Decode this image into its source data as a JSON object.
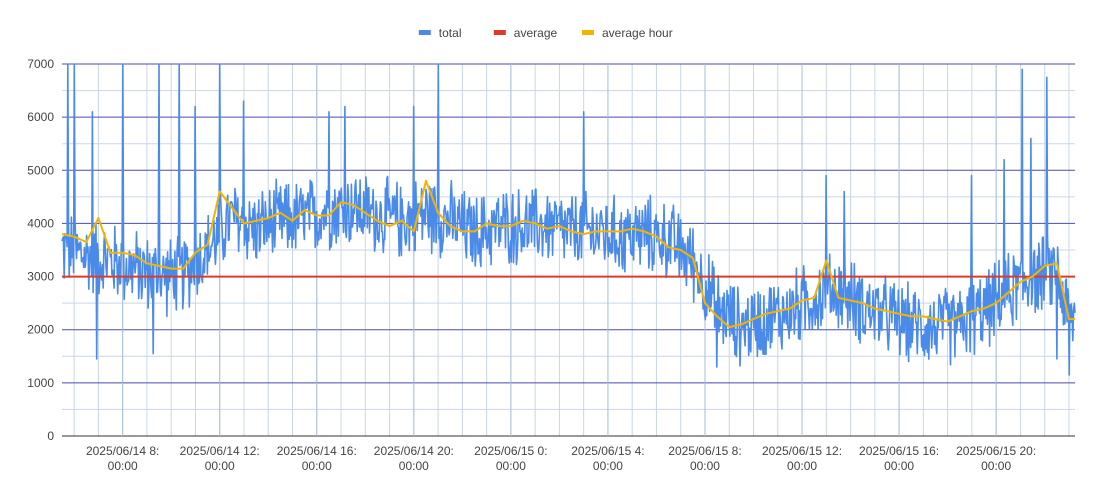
{
  "chart_data": {
    "type": "line",
    "title": "",
    "xlabel": "",
    "ylabel": "",
    "ylim": [
      0,
      7000
    ],
    "y_ticks": [
      0,
      1000,
      2000,
      3000,
      4000,
      5000,
      6000,
      7000
    ],
    "x_range": [
      "2025/06/14 05:30",
      "2025/06/15 23:15"
    ],
    "x_tick_labels": [
      {
        "at": "2025/06/14 08:00",
        "line1": "2025/06/14 8:",
        "line2": "00:00"
      },
      {
        "at": "2025/06/14 12:00",
        "line1": "2025/06/14 12:",
        "line2": "00:00"
      },
      {
        "at": "2025/06/14 16:00",
        "line1": "2025/06/14 16:",
        "line2": "00:00"
      },
      {
        "at": "2025/06/14 20:00",
        "line1": "2025/06/14 20:",
        "line2": "00:00"
      },
      {
        "at": "2025/06/15 00:00",
        "line1": "2025/06/15 0:",
        "line2": "00:00"
      },
      {
        "at": "2025/06/15 04:00",
        "line1": "2025/06/15 4:",
        "line2": "00:00"
      },
      {
        "at": "2025/06/15 08:00",
        "line1": "2025/06/15 8:",
        "line2": "00:00"
      },
      {
        "at": "2025/06/15 12:00",
        "line1": "2025/06/15 12:",
        "line2": "00:00"
      },
      {
        "at": "2025/06/15 16:00",
        "line1": "2025/06/15 16:",
        "line2": "00:00"
      },
      {
        "at": "2025/06/15 20:00",
        "line1": "2025/06/15 20:",
        "line2": "00:00"
      }
    ],
    "grid": true,
    "legend": {
      "position": "top-center"
    },
    "series": [
      {
        "name": "total",
        "color": "#4a8bea",
        "x": [
          "2025/06/14 05:30",
          "2025/06/14 06:30",
          "2025/06/14 07:30",
          "2025/06/14 08:30",
          "2025/06/14 09:30",
          "2025/06/14 10:30",
          "2025/06/14 11:30",
          "2025/06/14 12:30",
          "2025/06/14 13:30",
          "2025/06/14 14:30",
          "2025/06/14 15:30",
          "2025/06/14 16:30",
          "2025/06/14 17:30",
          "2025/06/14 18:30",
          "2025/06/14 19:30",
          "2025/06/14 20:30",
          "2025/06/14 21:30",
          "2025/06/14 22:30",
          "2025/06/14 23:30",
          "2025/06/15 00:30",
          "2025/06/15 01:30",
          "2025/06/15 02:30",
          "2025/06/15 03:30",
          "2025/06/15 04:30",
          "2025/06/15 05:30",
          "2025/06/15 06:30",
          "2025/06/15 07:30",
          "2025/06/15 08:30",
          "2025/06/15 09:30",
          "2025/06/15 10:30",
          "2025/06/15 11:30",
          "2025/06/15 12:30",
          "2025/06/15 13:30",
          "2025/06/15 14:30",
          "2025/06/15 15:30",
          "2025/06/15 16:30",
          "2025/06/15 17:30",
          "2025/06/15 18:30",
          "2025/06/15 19:30",
          "2025/06/15 20:30",
          "2025/06/15 21:30",
          "2025/06/15 22:30",
          "2025/06/15 23:00"
        ],
        "values": [
          3500,
          3400,
          3300,
          3150,
          3000,
          3050,
          3500,
          4100,
          3900,
          4050,
          4100,
          4250,
          4300,
          4150,
          4050,
          4200,
          4050,
          3800,
          3950,
          3950,
          3950,
          3850,
          3850,
          3750,
          3800,
          3700,
          3300,
          2400,
          2050,
          2200,
          2350,
          2600,
          2750,
          2450,
          2250,
          2100,
          2050,
          2100,
          2350,
          2700,
          3000,
          3100,
          2200
        ],
        "noise_band": 700,
        "spikes": [
          [
            "2025/06/14 05:45",
            7000
          ],
          [
            "2025/06/14 06:00",
            7000
          ],
          [
            "2025/06/14 06:45",
            6100
          ],
          [
            "2025/06/14 06:55",
            1450
          ],
          [
            "2025/06/14 08:00",
            7000
          ],
          [
            "2025/06/14 09:15",
            1550
          ],
          [
            "2025/06/14 09:30",
            7000
          ],
          [
            "2025/06/14 10:20",
            7000
          ],
          [
            "2025/06/14 11:00",
            6200
          ],
          [
            "2025/06/14 12:00",
            7000
          ],
          [
            "2025/06/14 13:00",
            6300
          ],
          [
            "2025/06/14 16:30",
            6100
          ],
          [
            "2025/06/14 17:10",
            6200
          ],
          [
            "2025/06/14 20:00",
            6200
          ],
          [
            "2025/06/14 21:00",
            7000
          ],
          [
            "2025/06/15 03:00",
            6100
          ],
          [
            "2025/06/15 08:30",
            1300
          ],
          [
            "2025/06/15 13:00",
            4900
          ],
          [
            "2025/06/15 13:45",
            4600
          ],
          [
            "2025/06/15 19:00",
            4900
          ],
          [
            "2025/06/15 20:20",
            5200
          ],
          [
            "2025/06/15 21:05",
            6900
          ],
          [
            "2025/06/15 21:25",
            5600
          ],
          [
            "2025/06/15 22:05",
            6750
          ],
          [
            "2025/06/15 22:30",
            1450
          ],
          [
            "2025/06/15 23:00",
            1150
          ]
        ]
      },
      {
        "name": "average",
        "color": "#db3b2b",
        "x": [
          "2025/06/14 05:30",
          "2025/06/15 23:15"
        ],
        "values": [
          3000,
          3000
        ]
      },
      {
        "name": "average hour",
        "color": "#f1b400",
        "x": [
          "2025/06/14 05:30",
          "2025/06/14 06:00",
          "2025/06/14 06:30",
          "2025/06/14 07:00",
          "2025/06/14 07:30",
          "2025/06/14 08:00",
          "2025/06/14 08:30",
          "2025/06/14 09:00",
          "2025/06/14 09:30",
          "2025/06/14 10:00",
          "2025/06/14 10:30",
          "2025/06/14 11:00",
          "2025/06/14 11:30",
          "2025/06/14 12:00",
          "2025/06/14 12:30",
          "2025/06/14 13:00",
          "2025/06/14 13:30",
          "2025/06/14 14:00",
          "2025/06/14 14:30",
          "2025/06/14 15:00",
          "2025/06/14 15:30",
          "2025/06/14 16:00",
          "2025/06/14 16:30",
          "2025/06/14 17:00",
          "2025/06/14 17:30",
          "2025/06/14 18:00",
          "2025/06/14 18:30",
          "2025/06/14 19:00",
          "2025/06/14 19:30",
          "2025/06/14 20:00",
          "2025/06/14 20:30",
          "2025/06/14 21:00",
          "2025/06/14 21:30",
          "2025/06/14 22:00",
          "2025/06/14 22:30",
          "2025/06/14 23:00",
          "2025/06/14 23:30",
          "2025/06/15 00:00",
          "2025/06/15 00:30",
          "2025/06/15 01:00",
          "2025/06/15 01:30",
          "2025/06/15 02:00",
          "2025/06/15 02:30",
          "2025/06/15 03:00",
          "2025/06/15 03:30",
          "2025/06/15 04:00",
          "2025/06/15 04:30",
          "2025/06/15 05:00",
          "2025/06/15 05:30",
          "2025/06/15 06:00",
          "2025/06/15 06:30",
          "2025/06/15 07:00",
          "2025/06/15 07:30",
          "2025/06/15 08:00",
          "2025/06/15 08:30",
          "2025/06/15 09:00",
          "2025/06/15 09:30",
          "2025/06/15 10:00",
          "2025/06/15 10:30",
          "2025/06/15 11:00",
          "2025/06/15 11:30",
          "2025/06/15 12:00",
          "2025/06/15 12:30",
          "2025/06/15 13:00",
          "2025/06/15 13:30",
          "2025/06/15 14:00",
          "2025/06/15 14:30",
          "2025/06/15 15:00",
          "2025/06/15 15:30",
          "2025/06/15 16:00",
          "2025/06/15 16:30",
          "2025/06/15 17:00",
          "2025/06/15 17:30",
          "2025/06/15 18:00",
          "2025/06/15 18:30",
          "2025/06/15 19:00",
          "2025/06/15 19:30",
          "2025/06/15 20:00",
          "2025/06/15 20:30",
          "2025/06/15 21:00",
          "2025/06/15 21:30",
          "2025/06/15 22:00",
          "2025/06/15 22:30",
          "2025/06/15 23:00",
          "2025/06/15 23:15"
        ],
        "values": [
          3800,
          3750,
          3650,
          4100,
          3450,
          3450,
          3400,
          3250,
          3200,
          3150,
          3150,
          3450,
          3600,
          4600,
          4300,
          4000,
          4050,
          4100,
          4200,
          4050,
          4250,
          4150,
          4150,
          4400,
          4350,
          4200,
          4050,
          3950,
          4050,
          3850,
          4800,
          4200,
          3950,
          3850,
          3850,
          4000,
          3950,
          3950,
          4050,
          4000,
          3900,
          3950,
          3850,
          3800,
          3850,
          3850,
          3850,
          3900,
          3850,
          3750,
          3550,
          3500,
          3350,
          2500,
          2250,
          2050,
          2100,
          2200,
          2300,
          2350,
          2400,
          2550,
          2600,
          3300,
          2600,
          2550,
          2500,
          2400,
          2350,
          2300,
          2250,
          2250,
          2200,
          2150,
          2250,
          2350,
          2400,
          2500,
          2700,
          2900,
          3000,
          3200,
          3250,
          2200,
          2200
        ]
      }
    ]
  }
}
